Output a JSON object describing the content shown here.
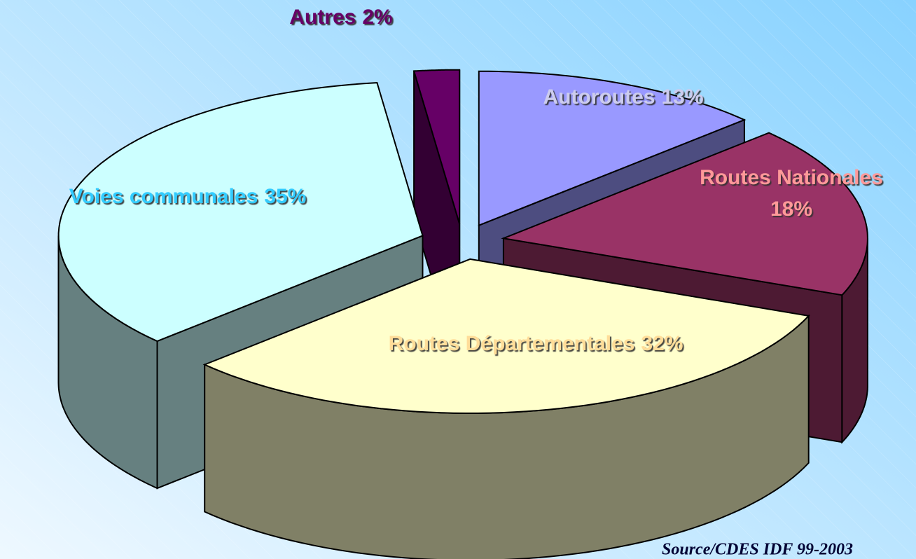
{
  "chart_data": {
    "type": "pie3d",
    "categories": [
      "Autoroutes",
      "Routes Nationales",
      "Routes Départementales",
      "Voies communales",
      "Autres"
    ],
    "values": [
      13,
      18,
      32,
      35,
      2
    ],
    "value_labels": [
      "13%",
      "18%",
      "32%",
      "35%",
      "2%"
    ],
    "colors": [
      "#9999ff",
      "#993366",
      "#ffffcc",
      "#ccffff",
      "#660066"
    ],
    "label_colors": [
      "#ccccee",
      "#ff9999",
      "#ffdd99",
      "#33ccff",
      "#660066"
    ],
    "source": "Source/CDES IDF 99-2003"
  }
}
